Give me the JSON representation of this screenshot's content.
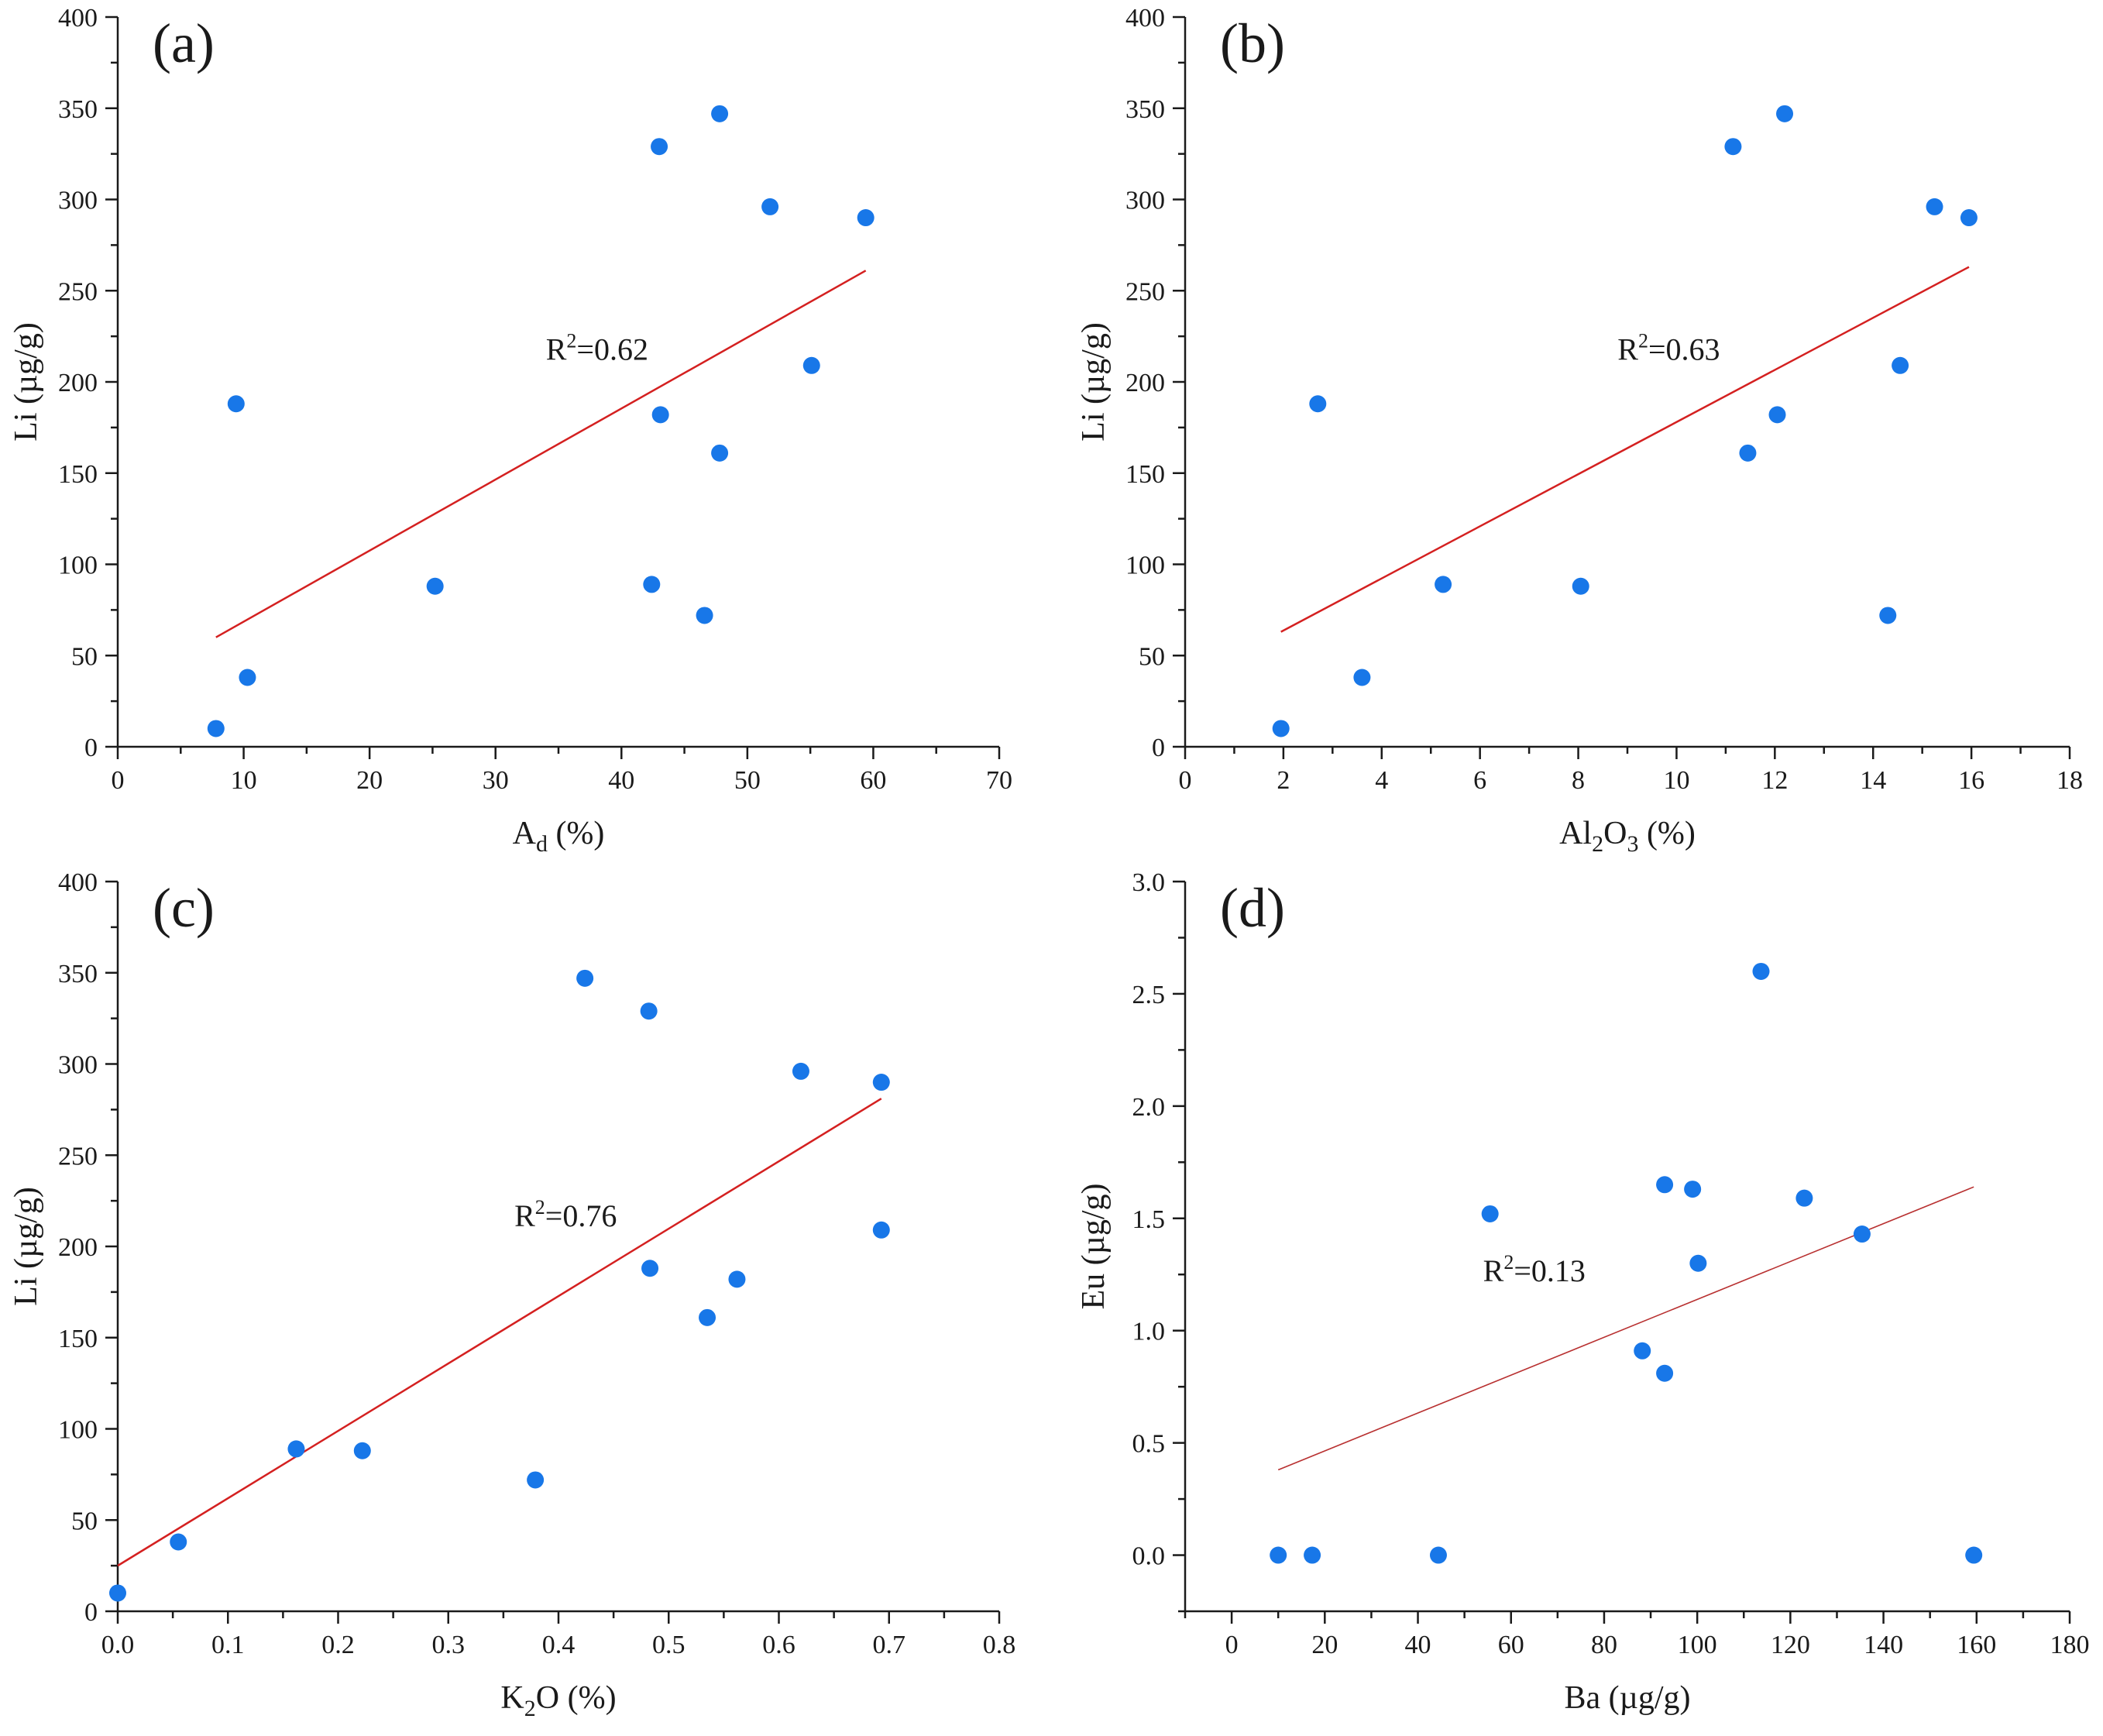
{
  "chart_data": [
    {
      "type": "scatter",
      "panel_label": "(a)",
      "xlabel": {
        "main": "A",
        "sub": "d",
        "rest": " (%)"
      },
      "ylabel": "Li (µg/g)",
      "xlim": [
        0,
        70
      ],
      "ylim": [
        0,
        400
      ],
      "xticks": [
        0,
        10,
        20,
        30,
        40,
        50,
        60,
        70
      ],
      "yticks": [
        0,
        50,
        100,
        150,
        200,
        250,
        300,
        350,
        400
      ],
      "xtick_labels": [
        "0",
        "10",
        "20",
        "30",
        "40",
        "50",
        "60",
        "70"
      ],
      "ytick_labels": [
        "0",
        "50",
        "100",
        "150",
        "200",
        "250",
        "300",
        "350",
        "400"
      ],
      "x_minor_ticks": true,
      "y_minor_ticks": true,
      "points": [
        [
          7.8,
          10
        ],
        [
          10.3,
          38
        ],
        [
          9.4,
          188
        ],
        [
          25.2,
          88
        ],
        [
          42.4,
          89
        ],
        [
          46.6,
          72
        ],
        [
          43.1,
          182
        ],
        [
          47.8,
          161
        ],
        [
          55.1,
          209
        ],
        [
          43.0,
          329
        ],
        [
          47.8,
          347
        ],
        [
          51.8,
          296
        ],
        [
          59.4,
          290
        ]
      ],
      "fit_line": {
        "x": [
          7.8,
          59.4
        ],
        "y": [
          60,
          261
        ],
        "color": "#d42020",
        "width": 2.5
      },
      "r2": {
        "prefix": "R",
        "sup": "2",
        "value": "=0.62",
        "at": [
          34,
          212
        ]
      }
    },
    {
      "type": "scatter",
      "panel_label": "(b)",
      "xlabel": {
        "main": "Al",
        "sub": "2",
        "main2": "O",
        "sub2": "3",
        "rest": " (%)"
      },
      "ylabel": "Li (µg/g)",
      "xlim": [
        0,
        18
      ],
      "ylim": [
        0,
        400
      ],
      "xticks": [
        0,
        2,
        4,
        6,
        8,
        10,
        12,
        14,
        16,
        18
      ],
      "yticks": [
        0,
        50,
        100,
        150,
        200,
        250,
        300,
        350,
        400
      ],
      "xtick_labels": [
        "0",
        "2",
        "4",
        "6",
        "8",
        "10",
        "12",
        "14",
        "16",
        "18"
      ],
      "ytick_labels": [
        "0",
        "50",
        "100",
        "150",
        "200",
        "250",
        "300",
        "350",
        "400"
      ],
      "x_minor_ticks": true,
      "y_minor_ticks": true,
      "points": [
        [
          1.95,
          10
        ],
        [
          3.6,
          38
        ],
        [
          2.7,
          188
        ],
        [
          5.25,
          89
        ],
        [
          8.05,
          88
        ],
        [
          14.3,
          72
        ],
        [
          11.45,
          161
        ],
        [
          12.05,
          182
        ],
        [
          14.55,
          209
        ],
        [
          11.15,
          329
        ],
        [
          12.2,
          347
        ],
        [
          15.25,
          296
        ],
        [
          15.95,
          290
        ]
      ],
      "fit_line": {
        "x": [
          1.95,
          15.95
        ],
        "y": [
          63,
          263
        ],
        "color": "#d42020",
        "width": 2.5
      },
      "r2": {
        "prefix": "R",
        "sup": "2",
        "value": "=0.63",
        "at": [
          8.8,
          212
        ]
      }
    },
    {
      "type": "scatter",
      "panel_label": "(c)",
      "xlabel": {
        "main": "K",
        "sub": "2",
        "rest": "O (%)"
      },
      "ylabel": "Li (µg/g)",
      "xlim": [
        0,
        0.8
      ],
      "ylim": [
        0,
        400
      ],
      "xticks": [
        0,
        0.1,
        0.2,
        0.3,
        0.4,
        0.5,
        0.6,
        0.7,
        0.8
      ],
      "yticks": [
        0,
        50,
        100,
        150,
        200,
        250,
        300,
        350,
        400
      ],
      "xtick_labels": [
        "0.0",
        "0.1",
        "0.2",
        "0.3",
        "0.4",
        "0.5",
        "0.6",
        "0.7",
        "0.8"
      ],
      "ytick_labels": [
        "0",
        "50",
        "100",
        "150",
        "200",
        "250",
        "300",
        "350",
        "400"
      ],
      "x_minor_ticks": true,
      "y_minor_ticks": true,
      "points": [
        [
          0.0,
          10
        ],
        [
          0.055,
          38
        ],
        [
          0.162,
          89
        ],
        [
          0.222,
          88
        ],
        [
          0.379,
          72
        ],
        [
          0.483,
          188
        ],
        [
          0.535,
          161
        ],
        [
          0.562,
          182
        ],
        [
          0.693,
          209
        ],
        [
          0.424,
          347
        ],
        [
          0.482,
          329
        ],
        [
          0.62,
          296
        ],
        [
          0.693,
          290
        ]
      ],
      "fit_line": {
        "x": [
          0.0,
          0.693
        ],
        "y": [
          25,
          281
        ],
        "color": "#d42020",
        "width": 2.5
      },
      "r2": {
        "prefix": "R",
        "sup": "2",
        "value": "=0.76",
        "at": [
          0.36,
          211
        ]
      }
    },
    {
      "type": "scatter",
      "panel_label": "(d)",
      "xlabel": {
        "main": "Ba (µg/g)",
        "rest": ""
      },
      "ylabel": "Eu (µg/g)",
      "xlim": [
        -10,
        180
      ],
      "ylim": [
        -0.25,
        3.0
      ],
      "xticks": [
        0,
        20,
        40,
        60,
        80,
        100,
        120,
        140,
        160,
        180
      ],
      "yticks": [
        0,
        0.5,
        1.0,
        1.5,
        2.0,
        2.5,
        3.0
      ],
      "xtick_labels": [
        "0",
        "20",
        "40",
        "60",
        "80",
        "100",
        "120",
        "140",
        "160",
        "180"
      ],
      "ytick_labels": [
        "0.0",
        "0.5",
        "1.0",
        "1.5",
        "2.0",
        "2.5",
        "3.0"
      ],
      "x_minor_ticks": true,
      "y_minor_ticks": true,
      "points": [
        [
          10,
          0
        ],
        [
          17.3,
          0
        ],
        [
          44.4,
          0
        ],
        [
          159.4,
          0
        ],
        [
          55.5,
          1.52
        ],
        [
          88.2,
          0.91
        ],
        [
          93,
          0.81
        ],
        [
          93,
          1.65
        ],
        [
          99,
          1.63
        ],
        [
          100.2,
          1.3
        ],
        [
          113.7,
          2.6
        ],
        [
          123,
          1.59
        ],
        [
          135.4,
          1.43
        ]
      ],
      "fit_line": {
        "x": [
          10,
          159.4
        ],
        "y": [
          0.38,
          1.64
        ],
        "color": "#b83030",
        "width": 1.6
      },
      "r2": {
        "prefix": "R",
        "sup": "2",
        "value": "=0.13",
        "at": [
          54,
          1.22
        ]
      }
    }
  ]
}
